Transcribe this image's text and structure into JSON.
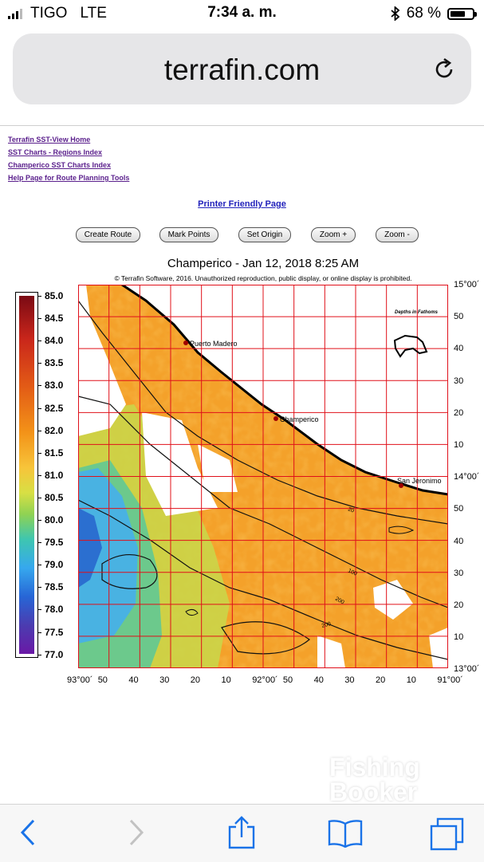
{
  "status": {
    "carrier": "TIGO",
    "network": "LTE",
    "time": "7:34 a. m.",
    "battery": "68 %",
    "battery_level": 0.68
  },
  "browser": {
    "url": "terrafin.com"
  },
  "links": [
    "Terrafin SST-View Home",
    "SST Charts - Regions Index",
    "Champerico SST Charts Index",
    "Help Page for Route Planning Tools"
  ],
  "printer_link": "Printer Friendly Page",
  "buttons": [
    "Create Route",
    "Mark Points",
    "Set Origin",
    "Zoom +",
    "Zoom -"
  ],
  "chart": {
    "title": "Champerico - Jan 12, 2018 8:25 AM",
    "copyright": "© Terrafin Software, 2016.  Unauthorized reproduction, public display, or online display is prohibited.",
    "legend_values": [
      "85.0",
      "84.5",
      "84.0",
      "83.5",
      "83.0",
      "82.5",
      "82.0",
      "81.5",
      "81.0",
      "80.5",
      "80.0",
      "79.5",
      "79.0",
      "78.5",
      "78.0",
      "77.5",
      "77.0"
    ],
    "places": [
      "Puerto Madero",
      "Champerico",
      "San Jeronimo"
    ],
    "depth_note": "Depths in Fathoms",
    "contour_labels": [
      "20",
      "100",
      "200",
      "200"
    ],
    "lat_labels": [
      "15°00´",
      "50",
      "40",
      "30",
      "20",
      "10",
      "14°00´",
      "50",
      "40",
      "30",
      "20",
      "10",
      "13°00´"
    ],
    "lon_labels": [
      "93°00´",
      "50",
      "40",
      "30",
      "20",
      "10",
      "92°00´",
      "50",
      "40",
      "30",
      "20",
      "10",
      "91°00´"
    ]
  },
  "watermark": {
    "line1": "Fishing",
    "line2": "Booker"
  }
}
